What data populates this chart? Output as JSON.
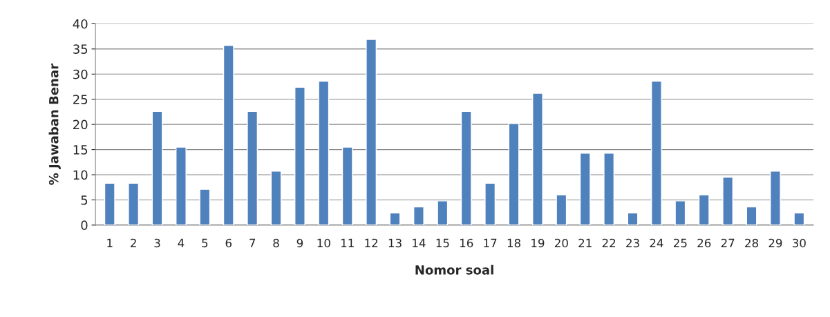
{
  "chart_data": {
    "type": "bar",
    "xlabel": "Nomor soal",
    "ylabel": "% Jawaban Benar",
    "categories": [
      "1",
      "2",
      "3",
      "4",
      "5",
      "6",
      "7",
      "8",
      "9",
      "10",
      "11",
      "12",
      "13",
      "14",
      "15",
      "16",
      "17",
      "18",
      "19",
      "20",
      "21",
      "22",
      "23",
      "24",
      "25",
      "26",
      "27",
      "28",
      "29",
      "30"
    ],
    "values": [
      8.3,
      8.3,
      22.6,
      15.5,
      7.1,
      35.7,
      22.6,
      10.7,
      27.4,
      28.6,
      15.5,
      36.9,
      2.4,
      3.6,
      4.8,
      22.6,
      8.3,
      20.2,
      26.2,
      6.0,
      14.3,
      14.3,
      2.4,
      28.6,
      4.8,
      6.0,
      9.5,
      3.6,
      10.7,
      2.4
    ],
    "color": "#4f81bd",
    "ylim": [
      0,
      40
    ],
    "yticks": [
      0,
      5,
      10,
      15,
      20,
      25,
      30,
      35,
      40
    ],
    "grid": "y",
    "legend": false
  }
}
